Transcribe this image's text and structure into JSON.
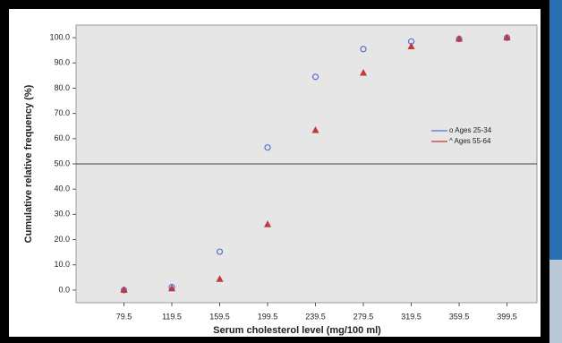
{
  "chart_data": {
    "type": "line",
    "x_label": "Serum cholesterol level (mg/100 ml)",
    "y_label": "Cumulative relative frequency (%)",
    "x": [
      79.5,
      119.5,
      159.5,
      199.5,
      239.5,
      279.5,
      319.5,
      359.5,
      399.5
    ],
    "series": [
      {
        "name": "o Ages 25-34",
        "color": "#5a6fd0",
        "marker": "circle",
        "values": [
          0,
          1.2,
          15.2,
          56.5,
          84.5,
          95.5,
          98.5,
          99.5,
          100
        ]
      },
      {
        "name": "^ Ages 55-64",
        "color": "#c0393b",
        "marker": "triangle",
        "values": [
          0,
          0.6,
          4.3,
          26,
          63.3,
          86,
          96.5,
          99.5,
          100
        ]
      }
    ],
    "reference_line": 50,
    "xlim": [
      39.5,
      424.5
    ],
    "ylim": [
      -5,
      105
    ],
    "xticks": [
      79.5,
      119.5,
      159.5,
      199.5,
      239.5,
      279.5,
      319.5,
      359.5,
      399.5
    ],
    "yticks": [
      {
        "value": 0,
        "label": "0.0"
      },
      {
        "value": 10,
        "label": "10.0"
      },
      {
        "value": 20,
        "label": "20.0"
      },
      {
        "value": 30,
        "label": "30.0"
      },
      {
        "value": 40,
        "label": "40.0"
      },
      {
        "value": 50,
        "label": "50.0"
      },
      {
        "value": 60,
        "label": "60.0"
      },
      {
        "value": 70,
        "label": "70.0"
      },
      {
        "value": 80,
        "label": "80.0"
      },
      {
        "value": 90,
        "label": "90.0"
      },
      {
        "value": 100,
        "label": "100.0"
      }
    ],
    "legend_position": "right"
  }
}
